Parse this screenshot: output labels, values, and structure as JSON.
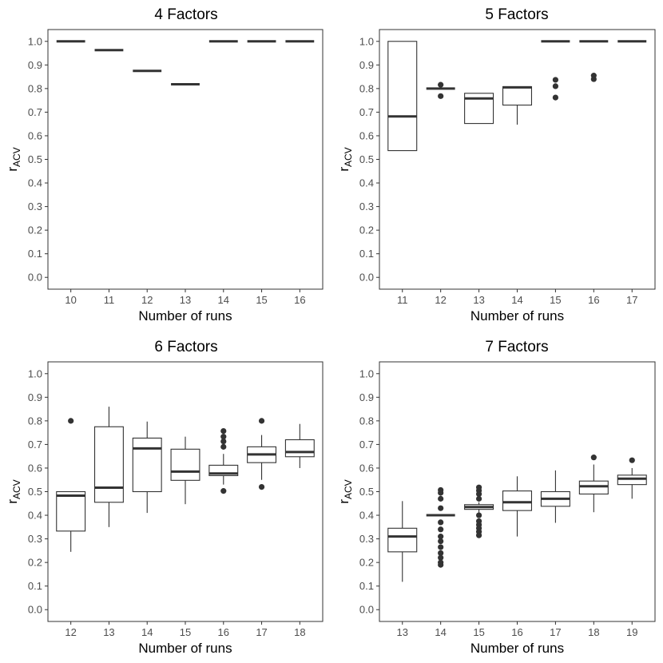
{
  "figure": {
    "ylabel_main": "r",
    "ylabel_sub": "ACV",
    "xlabel": "Number of runs",
    "ytick_labels": [
      "0.0",
      "0.1",
      "0.2",
      "0.3",
      "0.4",
      "0.5",
      "0.6",
      "0.7",
      "0.8",
      "0.9",
      "1.0"
    ]
  },
  "chart_data": [
    {
      "type": "boxplot",
      "title": "4 Factors",
      "xlabel": "Number of runs",
      "ylabel": "r_ACV",
      "ylim": [
        -0.05,
        1.05
      ],
      "categories": [
        "10",
        "11",
        "12",
        "13",
        "14",
        "15",
        "16"
      ],
      "boxes": [
        {
          "x": "10",
          "min": 1.0,
          "q1": 1.0,
          "median": 1.0,
          "q3": 1.0,
          "max": 1.0,
          "outliers": []
        },
        {
          "x": "11",
          "min": 0.963,
          "q1": 0.963,
          "median": 0.963,
          "q3": 0.963,
          "max": 0.963,
          "outliers": []
        },
        {
          "x": "12",
          "min": 0.875,
          "q1": 0.875,
          "median": 0.875,
          "q3": 0.875,
          "max": 0.875,
          "outliers": []
        },
        {
          "x": "13",
          "min": 0.818,
          "q1": 0.818,
          "median": 0.818,
          "q3": 0.818,
          "max": 0.818,
          "outliers": []
        },
        {
          "x": "14",
          "min": 1.0,
          "q1": 1.0,
          "median": 1.0,
          "q3": 1.0,
          "max": 1.0,
          "outliers": []
        },
        {
          "x": "15",
          "min": 1.0,
          "q1": 1.0,
          "median": 1.0,
          "q3": 1.0,
          "max": 1.0,
          "outliers": []
        },
        {
          "x": "16",
          "min": 1.0,
          "q1": 1.0,
          "median": 1.0,
          "q3": 1.0,
          "max": 1.0,
          "outliers": []
        }
      ]
    },
    {
      "type": "boxplot",
      "title": "5 Factors",
      "xlabel": "Number of runs",
      "ylabel": "r_ACV",
      "ylim": [
        -0.05,
        1.05
      ],
      "categories": [
        "11",
        "12",
        "13",
        "14",
        "15",
        "16",
        "17"
      ],
      "boxes": [
        {
          "x": "11",
          "min": 0.537,
          "q1": 0.537,
          "median": 0.682,
          "q3": 1.0,
          "max": 1.0,
          "outliers": []
        },
        {
          "x": "12",
          "min": 0.8,
          "q1": 0.8,
          "median": 0.8,
          "q3": 0.8,
          "max": 0.8,
          "outliers": [
            0.816,
            0.768
          ]
        },
        {
          "x": "13",
          "min": 0.652,
          "q1": 0.652,
          "median": 0.758,
          "q3": 0.78,
          "max": 0.78,
          "outliers": []
        },
        {
          "x": "14",
          "min": 0.647,
          "q1": 0.73,
          "median": 0.805,
          "q3": 0.808,
          "max": 0.808,
          "outliers": []
        },
        {
          "x": "15",
          "min": 1.0,
          "q1": 1.0,
          "median": 1.0,
          "q3": 1.0,
          "max": 1.0,
          "outliers": [
            0.837,
            0.81,
            0.762
          ]
        },
        {
          "x": "16",
          "min": 1.0,
          "q1": 1.0,
          "median": 1.0,
          "q3": 1.0,
          "max": 1.0,
          "outliers": [
            0.855,
            0.84
          ]
        },
        {
          "x": "17",
          "min": 1.0,
          "q1": 1.0,
          "median": 1.0,
          "q3": 1.0,
          "max": 1.0,
          "outliers": []
        }
      ]
    },
    {
      "type": "boxplot",
      "title": "6 Factors",
      "xlabel": "Number of runs",
      "ylabel": "r_ACV",
      "ylim": [
        -0.05,
        1.05
      ],
      "categories": [
        "12",
        "13",
        "14",
        "15",
        "16",
        "17",
        "18"
      ],
      "boxes": [
        {
          "x": "12",
          "min": 0.245,
          "q1": 0.333,
          "median": 0.483,
          "q3": 0.5,
          "max": 0.5,
          "outliers": [
            0.8
          ]
        },
        {
          "x": "13",
          "min": 0.35,
          "q1": 0.455,
          "median": 0.517,
          "q3": 0.775,
          "max": 0.86,
          "outliers": []
        },
        {
          "x": "14",
          "min": 0.41,
          "q1": 0.5,
          "median": 0.683,
          "q3": 0.727,
          "max": 0.797,
          "outliers": []
        },
        {
          "x": "15",
          "min": 0.447,
          "q1": 0.548,
          "median": 0.585,
          "q3": 0.68,
          "max": 0.733,
          "outliers": []
        },
        {
          "x": "16",
          "min": 0.53,
          "q1": 0.568,
          "median": 0.577,
          "q3": 0.612,
          "max": 0.66,
          "outliers": [
            0.757,
            0.733,
            0.713,
            0.69,
            0.503
          ]
        },
        {
          "x": "17",
          "min": 0.55,
          "q1": 0.623,
          "median": 0.658,
          "q3": 0.69,
          "max": 0.74,
          "outliers": [
            0.8,
            0.52
          ]
        },
        {
          "x": "18",
          "min": 0.6,
          "q1": 0.648,
          "median": 0.668,
          "q3": 0.72,
          "max": 0.787,
          "outliers": []
        }
      ]
    },
    {
      "type": "boxplot",
      "title": "7 Factors",
      "xlabel": "Number of runs",
      "ylabel": "r_ACV",
      "ylim": [
        -0.05,
        1.05
      ],
      "categories": [
        "13",
        "14",
        "15",
        "16",
        "17",
        "18",
        "19"
      ],
      "boxes": [
        {
          "x": "13",
          "min": 0.118,
          "q1": 0.245,
          "median": 0.31,
          "q3": 0.345,
          "max": 0.46,
          "outliers": []
        },
        {
          "x": "14",
          "min": 0.4,
          "q1": 0.4,
          "median": 0.4,
          "q3": 0.4,
          "max": 0.4,
          "outliers": [
            0.507,
            0.495,
            0.47,
            0.43,
            0.37,
            0.34,
            0.31,
            0.29,
            0.265,
            0.24,
            0.22,
            0.2,
            0.19
          ]
        },
        {
          "x": "15",
          "min": 0.4,
          "q1": 0.425,
          "median": 0.435,
          "q3": 0.445,
          "max": 0.455,
          "outliers": [
            0.518,
            0.505,
            0.49,
            0.47,
            0.4,
            0.375,
            0.36,
            0.345,
            0.33,
            0.315
          ]
        },
        {
          "x": "16",
          "min": 0.31,
          "q1": 0.42,
          "median": 0.455,
          "q3": 0.503,
          "max": 0.565,
          "outliers": []
        },
        {
          "x": "17",
          "min": 0.368,
          "q1": 0.438,
          "median": 0.47,
          "q3": 0.5,
          "max": 0.59,
          "outliers": []
        },
        {
          "x": "18",
          "min": 0.413,
          "q1": 0.49,
          "median": 0.523,
          "q3": 0.545,
          "max": 0.615,
          "outliers": [
            0.645
          ]
        },
        {
          "x": "19",
          "min": 0.47,
          "q1": 0.53,
          "median": 0.555,
          "q3": 0.57,
          "max": 0.6,
          "outliers": [
            0.633
          ]
        }
      ]
    }
  ]
}
